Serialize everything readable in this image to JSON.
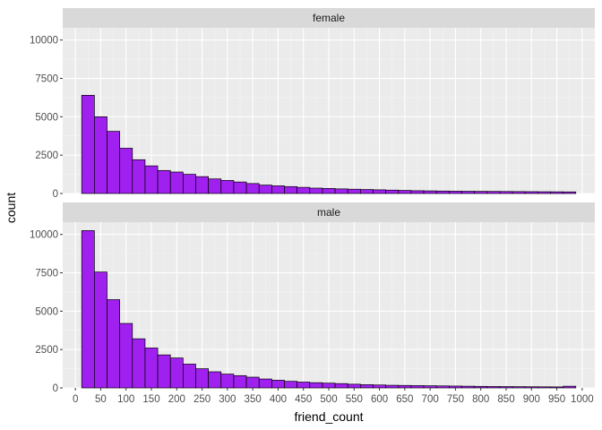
{
  "chart_data": {
    "type": "bar",
    "subtype": "faceted-histogram",
    "xlabel": "friend_count",
    "ylabel": "count",
    "xlim": [
      -25,
      1025
    ],
    "ylim": [
      0,
      10800
    ],
    "x_ticks": [
      0,
      50,
      100,
      150,
      200,
      250,
      300,
      350,
      400,
      450,
      500,
      550,
      600,
      650,
      700,
      750,
      800,
      850,
      900,
      950,
      1000
    ],
    "y_ticks": [
      0,
      2500,
      5000,
      7500,
      10000
    ],
    "y_tick_labels": [
      "0",
      "2500",
      "5000",
      "7500",
      "10000"
    ],
    "bin_width": 25,
    "first_bin_start": 12.5,
    "bar_fill": "#a020f0",
    "bar_outline": "#000000",
    "panel_background": "#ebebeb",
    "strip_background": "#d9d9d9",
    "grid": true,
    "legend": "none",
    "facets": [
      {
        "label": "female",
        "values": [
          6400,
          5000,
          4050,
          2950,
          2200,
          1800,
          1500,
          1400,
          1250,
          1100,
          950,
          850,
          750,
          650,
          550,
          500,
          450,
          400,
          350,
          330,
          300,
          280,
          260,
          240,
          220,
          200,
          180,
          170,
          160,
          150,
          145,
          140,
          135,
          130,
          125,
          120,
          115,
          110,
          105
        ]
      },
      {
        "label": "male",
        "values": [
          10250,
          7550,
          5750,
          4200,
          3200,
          2600,
          2150,
          1950,
          1550,
          1250,
          1050,
          900,
          800,
          700,
          580,
          500,
          430,
          380,
          340,
          310,
          280,
          240,
          210,
          190,
          170,
          160,
          150,
          140,
          130,
          120,
          110,
          100,
          90,
          85,
          80,
          75,
          70,
          65,
          110
        ]
      }
    ]
  }
}
